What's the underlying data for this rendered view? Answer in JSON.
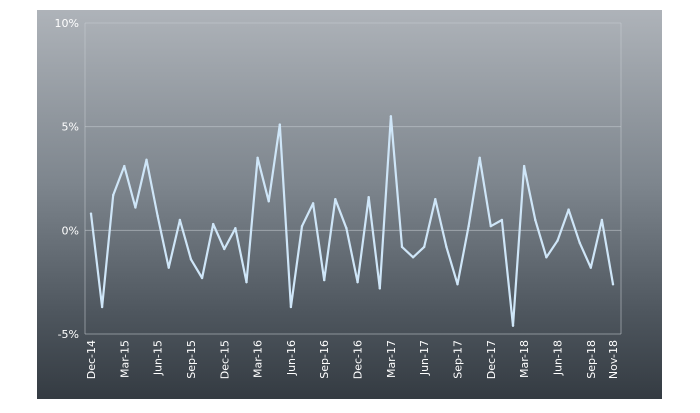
{
  "chart_data": {
    "type": "line",
    "title": "",
    "xlabel": "",
    "ylabel": "",
    "ylim": [
      -5,
      10
    ],
    "y_ticks": [
      -5,
      0,
      5,
      10
    ],
    "y_tick_labels": [
      "-5%",
      "0%",
      "5%",
      "10%"
    ],
    "grid": "horizontal",
    "legend": "none",
    "line_color": "#cfe6f8",
    "x_tick_labels": [
      "Dec-14",
      "Mar-15",
      "Jun-15",
      "Sep-15",
      "Dec-15",
      "Mar-16",
      "Jun-16",
      "Sep-16",
      "Dec-16",
      "Mar-17",
      "Jun-17",
      "Sep-17",
      "Dec-17",
      "Mar-18",
      "Jun-18",
      "Sep-18",
      "Nov-18"
    ],
    "x": [
      "Dec-14",
      "Jan-15",
      "Feb-15",
      "Mar-15",
      "Apr-15",
      "May-15",
      "Jun-15",
      "Jul-15",
      "Aug-15",
      "Sep-15",
      "Oct-15",
      "Nov-15",
      "Dec-15",
      "Jan-16",
      "Feb-16",
      "Mar-16",
      "Apr-16",
      "May-16",
      "Jun-16",
      "Jul-16",
      "Aug-16",
      "Sep-16",
      "Oct-16",
      "Nov-16",
      "Dec-16",
      "Jan-17",
      "Feb-17",
      "Mar-17",
      "Apr-17",
      "May-17",
      "Jun-17",
      "Jul-17",
      "Aug-17",
      "Sep-17",
      "Oct-17",
      "Nov-17",
      "Dec-17",
      "Jan-18",
      "Feb-18",
      "Mar-18",
      "Apr-18",
      "May-18",
      "Jun-18",
      "Jul-18",
      "Aug-18",
      "Sep-18",
      "Oct-18",
      "Nov-18"
    ],
    "values": [
      0.8,
      -3.7,
      1.7,
      3.1,
      1.1,
      3.4,
      0.7,
      -1.8,
      0.5,
      -1.4,
      -2.3,
      0.3,
      -0.9,
      0.1,
      -2.5,
      3.5,
      1.4,
      5.1,
      -3.7,
      0.2,
      1.3,
      -2.4,
      1.5,
      0.1,
      -2.5,
      1.6,
      -2.8,
      5.5,
      -0.8,
      -1.3,
      -0.8,
      1.5,
      -0.8,
      -2.6,
      0.2,
      3.5,
      0.2,
      0.5,
      -4.6,
      3.1,
      0.5,
      -1.3,
      -0.5,
      1.0,
      -0.6,
      -1.8,
      0.5,
      -2.6
    ]
  }
}
